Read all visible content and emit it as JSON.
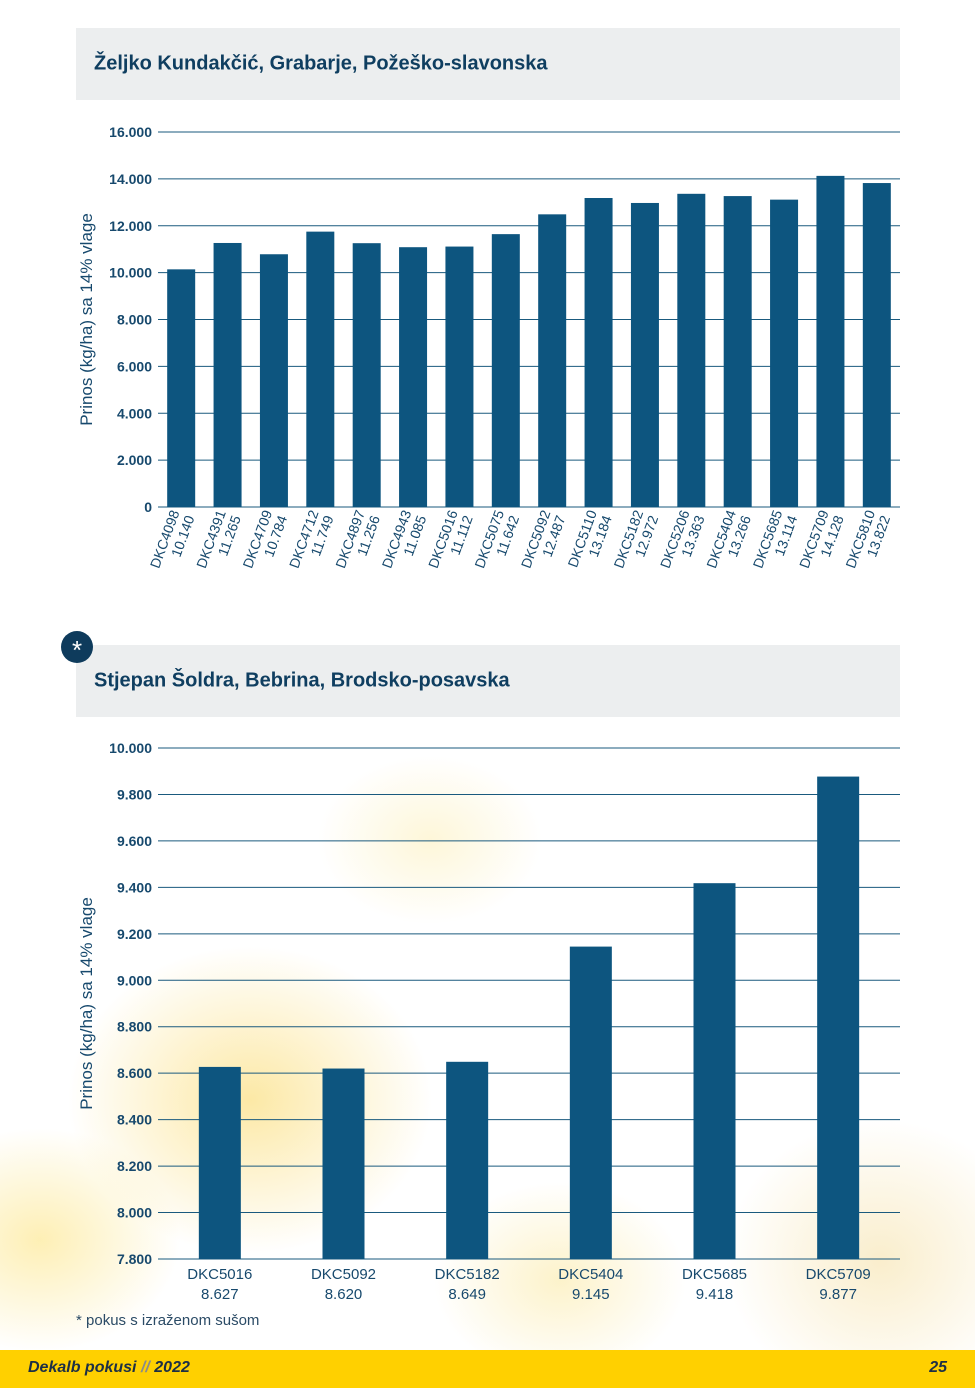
{
  "colors": {
    "bar": "#0d557f",
    "grid": "#1a5a7e",
    "text": "#17496d",
    "footer_bg": "#ffd000"
  },
  "charts_meta": {
    "badge": "*",
    "footnote": "* pokus s izraženom sušom"
  },
  "footer": {
    "brand": "Dekalb pokusi",
    "separator": "//",
    "year": "2022",
    "page_number": "25"
  },
  "chart_data": [
    {
      "type": "bar",
      "title": "Željko Kundakčić, Grabarje, Požeško-slavonska",
      "ylabel": "Prinos (kg/ha) sa 14% vlage",
      "xlabel": "",
      "ylim": [
        0,
        16000
      ],
      "yticks": [
        0,
        2000,
        4000,
        6000,
        8000,
        10000,
        12000,
        14000,
        16000
      ],
      "ytick_labels": [
        "0",
        "2.000",
        "4.000",
        "6.000",
        "8.000",
        "10.000",
        "12.000",
        "14.000",
        "16.000"
      ],
      "grid": true,
      "label_rotation": "rotated",
      "categories": [
        "DKC4098",
        "DKC4391",
        "DKC4709",
        "DKC4712",
        "DKC4897",
        "DKC4943",
        "DKC5016",
        "DKC5075",
        "DKC5092",
        "DKC5110",
        "DKC5182",
        "DKC5206",
        "DKC5404",
        "DKC5685",
        "DKC5709",
        "DKC5810"
      ],
      "value_labels": [
        "10.140",
        "11.265",
        "10.784",
        "11.749",
        "11.256",
        "11.085",
        "11.112",
        "11.642",
        "12.487",
        "13.184",
        "12.972",
        "13.363",
        "13.266",
        "13.114",
        "14.128",
        "13.822"
      ],
      "values": [
        10140,
        11265,
        10784,
        11749,
        11256,
        11085,
        11112,
        11642,
        12487,
        13184,
        12972,
        13363,
        13266,
        13114,
        14128,
        13822
      ]
    },
    {
      "type": "bar",
      "title": "Stjepan Šoldra, Bebrina, Brodsko-posavska",
      "ylabel": "Prinos (kg/ha) sa 14% vlage",
      "xlabel": "",
      "ylim": [
        7800,
        10000
      ],
      "yticks": [
        7800,
        8000,
        8200,
        8400,
        8600,
        8800,
        9000,
        9200,
        9400,
        9600,
        9800,
        10000
      ],
      "ytick_labels": [
        "7.800",
        "8.000",
        "8.200",
        "8.400",
        "8.600",
        "8.800",
        "9.000",
        "9.200",
        "9.400",
        "9.600",
        "9.800",
        "10.000"
      ],
      "grid": true,
      "label_rotation": "horizontal",
      "categories": [
        "DKC5016",
        "DKC5092",
        "DKC5182",
        "DKC5404",
        "DKC5685",
        "DKC5709"
      ],
      "value_labels": [
        "8.627",
        "8.620",
        "8.649",
        "9.145",
        "9.418",
        "9.877"
      ],
      "values": [
        8627,
        8620,
        8649,
        9145,
        9418,
        9877
      ]
    }
  ]
}
